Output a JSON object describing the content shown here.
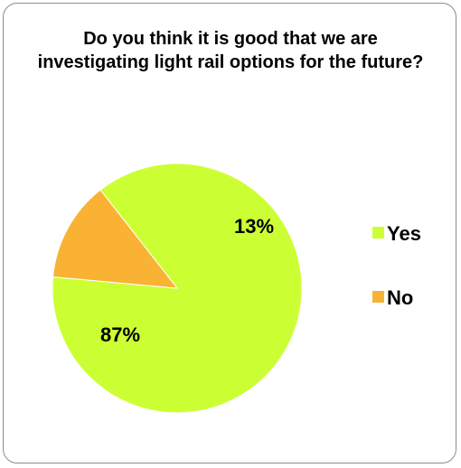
{
  "chart_data": {
    "type": "pie",
    "title": "Do you think it is good that we are investigating light rail options for the future?",
    "categories": [
      "Yes",
      "No"
    ],
    "values": [
      87,
      13
    ],
    "data_labels": [
      "87%",
      "13%"
    ],
    "colors": [
      "#ccff33",
      "#f9b233"
    ],
    "legend": {
      "position": "right",
      "entries": [
        "Yes",
        "No"
      ]
    }
  }
}
